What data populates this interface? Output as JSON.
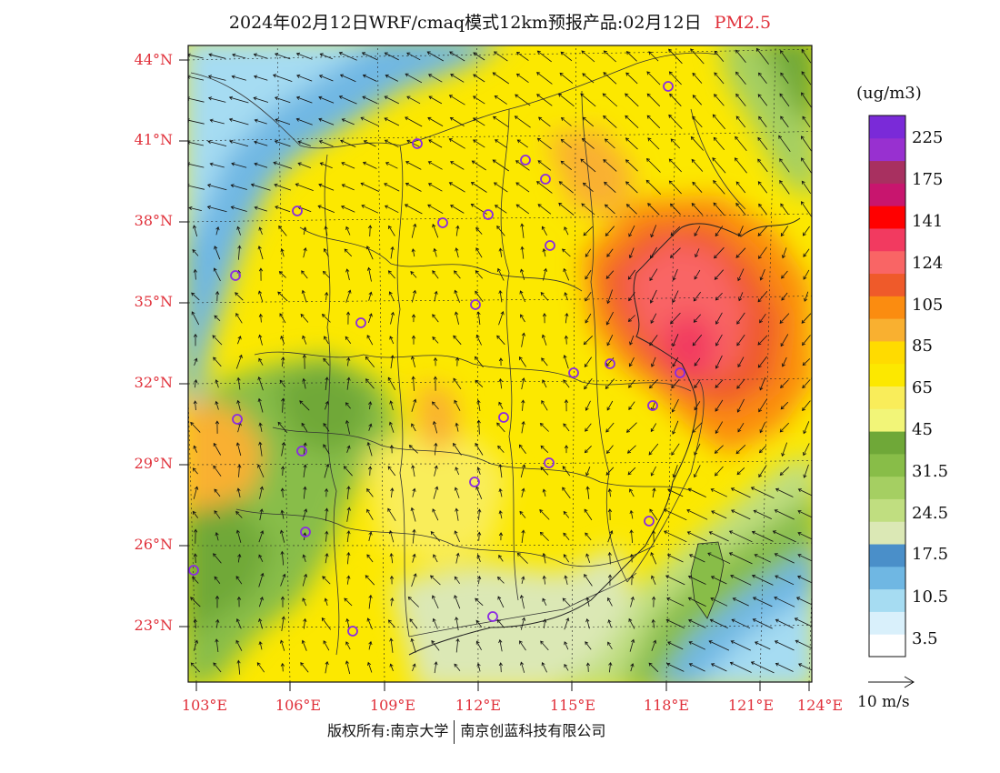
{
  "title": {
    "main": "2024年02月12日WRF/cmaq模式12km预报产品:02月12日",
    "pollutant": "PM2.5"
  },
  "map": {
    "lat_labels": [
      "44°N",
      "41°N",
      "38°N",
      "35°N",
      "32°N",
      "29°N",
      "26°N",
      "23°N"
    ],
    "lon_labels": [
      "103°E",
      "106°E",
      "109°E",
      "112°E",
      "115°E",
      "118°E",
      "121°E",
      "124°E"
    ],
    "city_marker_color": "#8a2be2",
    "cities_count_note": ""
  },
  "colorbar": {
    "unit": "(ug/m3)",
    "colors": [
      "#ffffff",
      "#d9f0fb",
      "#a6dcf2",
      "#6fb7e3",
      "#4a8fc9",
      "#dbe8b5",
      "#c0de80",
      "#a5cf62",
      "#88bd48",
      "#6fa838",
      "#f2f578",
      "#f9ed5a",
      "#fce800",
      "#ffdb00",
      "#f9b030",
      "#fb8c10",
      "#ef5a2a",
      "#f96565",
      "#f23a60",
      "#ff0000",
      "#c8156e",
      "#a83060",
      "#9830d0",
      "#7a2ad8"
    ],
    "labels": [
      "3.5",
      "10.5",
      "17.5",
      "24.5",
      "31.5",
      "45",
      "65",
      "85",
      "105",
      "124",
      "141",
      "175",
      "225"
    ]
  },
  "wind_reference": {
    "label": "10 m/s"
  },
  "footer": {
    "left": "版权所有:南京大学",
    "right": "南京创蓝科技有限公司"
  }
}
